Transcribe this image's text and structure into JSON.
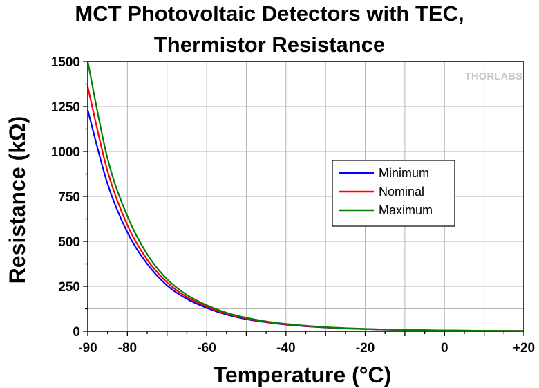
{
  "chart_data": {
    "type": "line",
    "title_line1": "MCT Photovoltaic Detectors with TEC,",
    "title_line2": "Thermistor Resistance",
    "xlabel": "Temperature (°C)",
    "ylabel": "Resistance (kΩ)",
    "xlim": [
      -90,
      20
    ],
    "ylim": [
      0,
      1500
    ],
    "x_ticks": [
      "-90",
      "-80",
      "-60",
      "-40",
      "-20",
      "0",
      "+20"
    ],
    "x_tick_values": [
      -90,
      -80,
      -60,
      -40,
      -20,
      0,
      20
    ],
    "y_ticks": [
      "0",
      "250",
      "500",
      "750",
      "1000",
      "1250",
      "1500"
    ],
    "y_tick_values": [
      0,
      250,
      500,
      750,
      1000,
      1250,
      1500
    ],
    "grid": true,
    "legend_position": "center-right",
    "watermark": "THORLABS",
    "x": [
      -90,
      -85,
      -80,
      -75,
      -70,
      -65,
      -60,
      -55,
      -50,
      -45,
      -40,
      -35,
      -30,
      -25,
      -20,
      -15,
      -10,
      -5,
      0,
      5,
      10,
      15,
      20
    ],
    "series": [
      {
        "name": "Minimum",
        "color": "#0000ff",
        "values": [
          1230,
          820,
          550,
          375,
          255,
          180,
          130,
          93,
          67,
          50,
          37,
          28,
          21,
          16,
          12.5,
          9.5,
          7.5,
          5.9,
          4.7,
          3.8,
          3.1,
          2.5,
          2.1
        ]
      },
      {
        "name": "Nominal",
        "color": "#ff0000",
        "values": [
          1360,
          890,
          590,
          398,
          272,
          190,
          137,
          98,
          71,
          52,
          39,
          29,
          22,
          17,
          13,
          10,
          7.8,
          6.1,
          4.9,
          3.9,
          3.2,
          2.6,
          2.1
        ]
      },
      {
        "name": "Maximum",
        "color": "#008000",
        "values": [
          1500,
          960,
          640,
          428,
          290,
          202,
          145,
          103,
          75,
          55,
          41,
          31,
          23,
          17.5,
          13.5,
          10.4,
          8.1,
          6.3,
          5.0,
          4.0,
          3.3,
          2.7,
          2.2
        ]
      }
    ]
  }
}
